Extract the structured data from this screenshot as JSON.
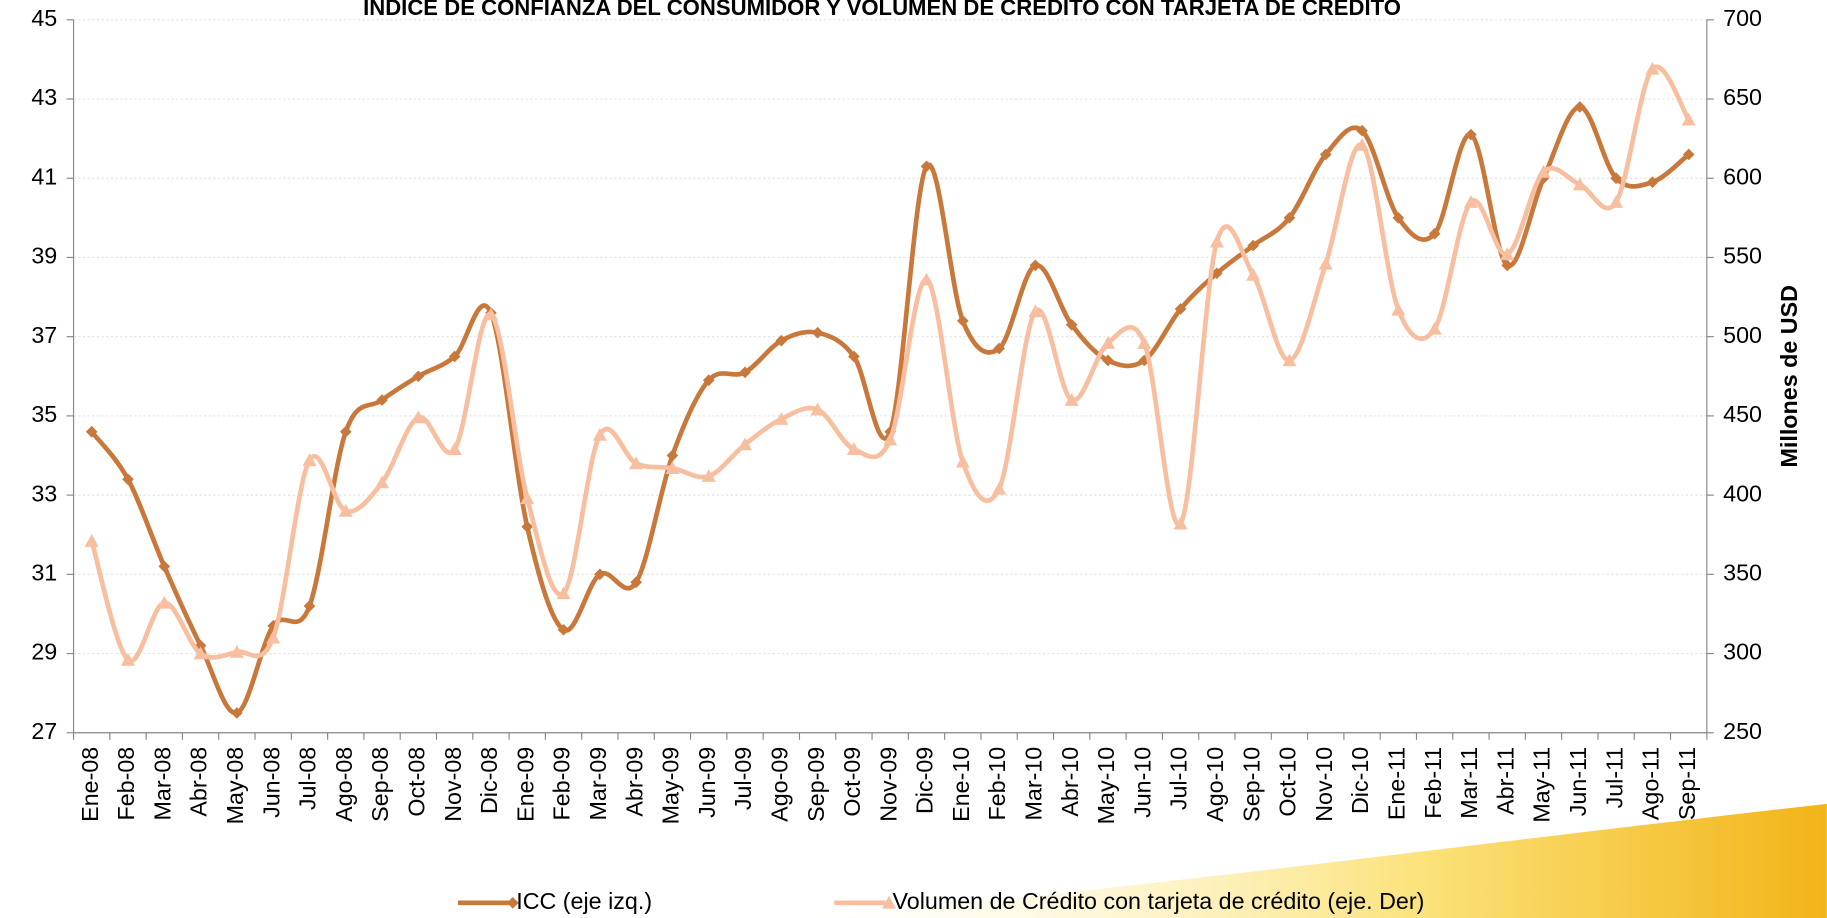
{
  "chart_data": {
    "type": "line",
    "title": "ÍNDICE DE CONFIANZA DEL CONSUMIDOR Y VOLUMEN DE CRÉDITO CON TARJETA DE CRÉDITO",
    "y2label": "Millones de USD",
    "categories": [
      "Ene-08",
      "Feb-08",
      "Mar-08",
      "Abr-08",
      "May-08",
      "Jun-08",
      "Jul-08",
      "Ago-08",
      "Sep-08",
      "Oct-08",
      "Nov-08",
      "Dic-08",
      "Ene-09",
      "Feb-09",
      "Mar-09",
      "Abr-09",
      "May-09",
      "Jun-09",
      "Jul-09",
      "Ago-09",
      "Sep-09",
      "Oct-09",
      "Nov-09",
      "Dic-09",
      "Ene-10",
      "Feb-10",
      "Mar-10",
      "Abr-10",
      "May-10",
      "Jun-10",
      "Jul-10",
      "Ago-10",
      "Sep-10",
      "Oct-10",
      "Nov-10",
      "Dic-10",
      "Ene-11",
      "Feb-11",
      "Mar-11",
      "Abr-11",
      "May-11",
      "Jun-11",
      "Jul-11",
      "Ago-11",
      "Sep-11"
    ],
    "series": [
      {
        "name": "ICC (eje izq.)",
        "color": "#c8783a",
        "marker": "diamond",
        "values": [
          34.6,
          33.4,
          31.2,
          29.2,
          27.5,
          29.7,
          30.2,
          34.6,
          35.4,
          36.0,
          36.5,
          37.6,
          32.2,
          29.6,
          31.0,
          30.8,
          34.0,
          35.9,
          36.1,
          36.9,
          37.1,
          36.5,
          34.6,
          41.3,
          37.4,
          36.7,
          38.8,
          37.3,
          36.4,
          36.4,
          37.7,
          38.6,
          39.3,
          40.0,
          41.6,
          42.2,
          40.0,
          39.6,
          42.1,
          38.8,
          41.0,
          42.8,
          41.0,
          40.9,
          41.6
        ]
      },
      {
        "name": "Volumen de Crédito con tarjeta de crédito (eje. Der)",
        "color": "#f7bfa0",
        "marker": "triangle",
        "axis": "y2",
        "values": [
          371,
          296,
          332,
          300,
          301,
          310,
          422,
          390,
          408,
          449,
          429,
          514,
          398,
          338,
          438,
          420,
          417,
          412,
          432,
          448,
          454,
          429,
          435,
          536,
          421,
          404,
          516,
          460,
          496,
          496,
          382,
          560,
          539,
          485,
          546,
          621,
          517,
          505,
          585,
          552,
          604,
          596,
          585,
          669,
          637
        ]
      }
    ],
    "ylim": [
      27,
      45
    ],
    "yticks": [
      27,
      29,
      31,
      33,
      35,
      37,
      39,
      41,
      43,
      45
    ],
    "y2lim": [
      250,
      700
    ],
    "y2ticks": [
      250,
      300,
      350,
      400,
      450,
      500,
      550,
      600,
      650,
      700
    ],
    "grid": true
  }
}
